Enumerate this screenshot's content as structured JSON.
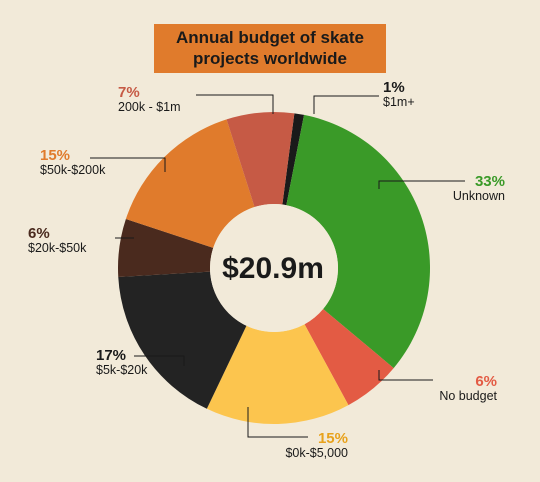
{
  "title_lines": [
    "Annual budget of skate",
    "projects worldwide"
  ],
  "center_label": "$20.9m",
  "chart_data": {
    "type": "pie",
    "title": "Annual budget of skate projects worldwide",
    "total_label": "$20.9m",
    "slices": [
      {
        "label": "$1m+",
        "pct_label": "1%",
        "value": 1,
        "color": "#1a1a1a",
        "pct_color": "#1a1a1a"
      },
      {
        "label": "Unknown",
        "pct_label": "33%",
        "value": 33,
        "color": "#3a9a28",
        "pct_color": "#3a9a28"
      },
      {
        "label": "No budget",
        "pct_label": "6%",
        "value": 6,
        "color": "#e35b44",
        "pct_color": "#e35b44"
      },
      {
        "label": "$0k-$5,000",
        "pct_label": "15%",
        "value": 15,
        "color": "#fcc54e",
        "pct_color": "#e8a21c"
      },
      {
        "label": "$5k-$20k",
        "pct_label": "17%",
        "value": 17,
        "color": "#232323",
        "pct_color": "#1a1a1a"
      },
      {
        "label": "$20k-$50k",
        "pct_label": "6%",
        "value": 6,
        "color": "#4a2a1e",
        "pct_color": "#4a2a1e"
      },
      {
        "label": "$50k-$200k",
        "pct_label": "15%",
        "value": 15,
        "color": "#e07b2c",
        "pct_color": "#e07b2c"
      },
      {
        "label": "200k - $1m",
        "pct_label": "7%",
        "value": 7,
        "color": "#c65a45",
        "pct_color": "#c65a45"
      }
    ]
  }
}
